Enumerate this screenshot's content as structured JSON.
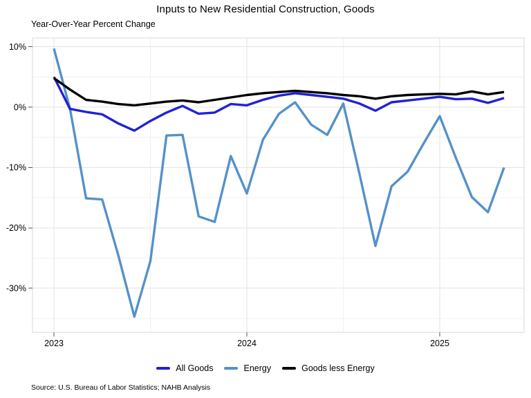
{
  "header": {
    "title": "Inputs to New Residential Construction, Goods",
    "subtitle": "Year-Over-Year Percent Change"
  },
  "footer": {
    "source": "Source: U.S. Bureau of Labor Statistics; NAHB Analysis"
  },
  "chart_data": {
    "type": "line",
    "title": "Inputs to New Residential Construction, Goods",
    "subtitle": "Year-Over-Year Percent Change",
    "xlabel": "",
    "ylabel": "Year-Over-Year Percent Change",
    "grid": true,
    "legend_position": "bottom",
    "source": "Source: U.S. Bureau of Labor Statistics; NAHB Analysis",
    "ylim": [
      -37.3,
      11.4
    ],
    "x": [
      "Jan 2023",
      "Feb 2023",
      "Mar 2023",
      "Apr 2023",
      "May 2023",
      "Jun 2023",
      "Jul 2023",
      "Aug 2023",
      "Sep 2023",
      "Oct 2023",
      "Nov 2023",
      "Dec 2023",
      "Jan 2024",
      "Feb 2024",
      "Mar 2024",
      "Apr 2024",
      "May 2024",
      "Jun 2024",
      "Jul 2024",
      "Aug 2024",
      "Sep 2024",
      "Oct 2024",
      "Nov 2024",
      "Dec 2024",
      "Jan 2025",
      "Feb 2025",
      "Mar 2025",
      "Apr 2025",
      "May 2025"
    ],
    "series": [
      {
        "name": "All Goods",
        "color": "#2121d6",
        "values": [
          5.0,
          -0.3,
          -0.8,
          -1.2,
          -2.7,
          -3.9,
          -2.3,
          -0.9,
          0.2,
          -1.1,
          -0.9,
          0.5,
          0.3,
          1.2,
          1.9,
          2.3,
          2.0,
          1.7,
          1.4,
          0.6,
          -0.6,
          0.8,
          1.1,
          1.4,
          1.7,
          1.3,
          1.4,
          0.7,
          1.5
        ]
      },
      {
        "name": "Energy",
        "color": "#5591c9",
        "values": [
          9.7,
          -0.3,
          -15.1,
          -15.3,
          -24.5,
          -34.7,
          -25.5,
          -4.7,
          -4.6,
          -18.1,
          -19.0,
          -8.1,
          -14.3,
          -5.4,
          -1.1,
          0.8,
          -2.9,
          -4.6,
          0.6,
          -11.0,
          -23.0,
          -13.1,
          -10.7,
          -6.0,
          -1.5,
          -8.4,
          -14.9,
          -17.4,
          -10.0
        ]
      },
      {
        "name": "Goods less Energy",
        "color": "#000000",
        "values": [
          4.8,
          2.9,
          1.2,
          0.9,
          0.5,
          0.3,
          0.6,
          0.9,
          1.1,
          0.8,
          1.2,
          1.6,
          2.0,
          2.3,
          2.5,
          2.7,
          2.5,
          2.3,
          2.0,
          1.8,
          1.4,
          1.8,
          2.0,
          2.1,
          2.2,
          2.1,
          2.6,
          2.1,
          2.5
        ]
      }
    ],
    "x_ticks": [
      {
        "label": "2023",
        "month": 0
      },
      {
        "label": "2024",
        "month": 12
      },
      {
        "label": "2025",
        "month": 24
      }
    ],
    "x_minor_months": [
      6,
      18
    ],
    "y_ticks": [
      {
        "label": "10%",
        "value": 10
      },
      {
        "label": "0%",
        "value": 0
      },
      {
        "label": "-10%",
        "value": -10
      },
      {
        "label": "-20%",
        "value": -20
      },
      {
        "label": "-30%",
        "value": -30
      }
    ],
    "y_minor_values": [
      5,
      -5,
      -15,
      -25,
      -35
    ],
    "colors": {
      "grid_major": "#e3e3e3",
      "grid_minor": "#f0f0f0",
      "panel_border": "#d9d9d9",
      "tick_mark": "#555555"
    }
  }
}
